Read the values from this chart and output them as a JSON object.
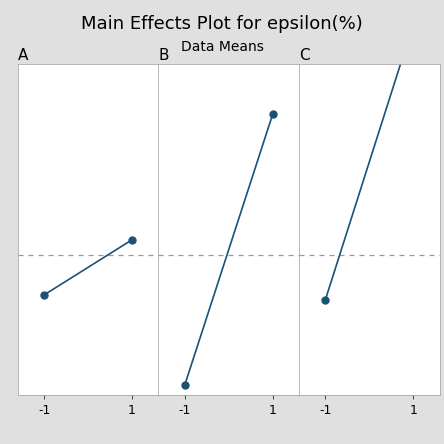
{
  "title": "Main Effects Plot for epsilon(%)",
  "subtitle": "Data Means",
  "panels": [
    "A",
    "B",
    "C"
  ],
  "panel_data": {
    "A": {
      "x": [
        -1,
        1
      ],
      "y": [
        0.2,
        0.255
      ]
    },
    "B": {
      "x": [
        -1,
        1
      ],
      "y": [
        0.11,
        0.38
      ]
    },
    "C": {
      "x": [
        -1,
        1
      ],
      "y": [
        0.195,
        0.47
      ]
    }
  },
  "grand_mean": 0.24,
  "line_color": "#1a5276",
  "marker_color": "#1a5276",
  "dashed_color": "#999999",
  "bg_color": "#e0e0e0",
  "plot_bg_color": "#ffffff",
  "title_fontsize": 13,
  "subtitle_fontsize": 10,
  "panel_label_fontsize": 11,
  "tick_fontsize": 9,
  "ymin": 0.1,
  "ymax": 0.43
}
